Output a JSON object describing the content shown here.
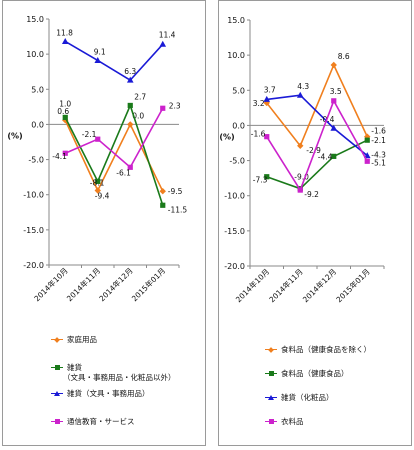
{
  "chart_data": [
    {
      "type": "line",
      "ylabel": "(%)",
      "ylim": [
        -20,
        15
      ],
      "yticks": [
        "15.0",
        "10.0",
        "5.0",
        "0.0",
        "-5.0",
        "-10.0",
        "-15.0",
        "-20.0"
      ],
      "ytick_values": [
        15,
        10,
        5,
        0,
        -5,
        -10,
        -15,
        -20
      ],
      "categories": [
        "2014年10月",
        "2014年11月",
        "2014年12月",
        "2015年01月"
      ],
      "legend_position": "bottom",
      "series": [
        {
          "name": "家庭用品",
          "name_lines": [
            "家庭用品"
          ],
          "color": "#f07f1e",
          "marker": "diamond",
          "values": [
            0.6,
            -9.4,
            0.0,
            -9.5
          ],
          "labels": [
            "0.6",
            "-9.4",
            "0.0",
            "-9.5"
          ]
        },
        {
          "name": "雑貨（文具・事務用品・化粧品以外）",
          "name_lines": [
            "雑貨",
            "（文具・事務用品・化粧品以外）"
          ],
          "color": "#1a7a1a",
          "marker": "square",
          "values": [
            1.0,
            -8.1,
            2.7,
            -11.5
          ],
          "labels": [
            "1.0",
            "-8.1",
            "2.7",
            "-11.5"
          ]
        },
        {
          "name": "雑貨（文具・事務用品）",
          "name_lines": [
            "雑貨（文具・事務用品）"
          ],
          "color": "#1a1ad6",
          "marker": "triangle",
          "values": [
            11.8,
            9.1,
            6.3,
            11.4
          ],
          "labels": [
            "11.8",
            "9.1",
            "6.3",
            "11.4"
          ]
        },
        {
          "name": "通信教育・サービス",
          "name_lines": [
            "通信教育・サービス"
          ],
          "color": "#cc22cc",
          "marker": "square",
          "values": [
            -4.1,
            -2.1,
            -6.1,
            2.3
          ],
          "labels": [
            "-4.1",
            "-2.1",
            "-6.1",
            "2.3"
          ]
        }
      ]
    },
    {
      "type": "line",
      "ylabel": "(%)",
      "ylim": [
        -20,
        15
      ],
      "yticks": [
        "15.0",
        "10.0",
        "5.0",
        "0.0",
        "-5.0",
        "-10.0",
        "-15.0",
        "-20.0"
      ],
      "ytick_values": [
        15,
        10,
        5,
        0,
        -5,
        -10,
        -15,
        -20
      ],
      "categories": [
        "2014年10月",
        "2014年11月",
        "2014年12月",
        "2015年01月"
      ],
      "legend_position": "bottom",
      "series": [
        {
          "name": "食料品（健康食品を除く）",
          "name_lines": [
            "食料品（健康食品を除く）"
          ],
          "color": "#f07f1e",
          "marker": "diamond",
          "values": [
            3.2,
            -2.9,
            8.6,
            -1.6
          ],
          "labels": [
            "3.2",
            "-2.9",
            "8.6",
            "-1.6"
          ]
        },
        {
          "name": "食料品（健康食品）",
          "name_lines": [
            "食料品（健康食品）"
          ],
          "color": "#1a7a1a",
          "marker": "square",
          "values": [
            -7.3,
            -9.0,
            -4.4,
            -2.1
          ],
          "labels": [
            "-7.3",
            "-9.0",
            "-4.4",
            "-2.1"
          ]
        },
        {
          "name": "雑貨（化粧品）",
          "name_lines": [
            "雑貨（化粧品）"
          ],
          "color": "#1a1ad6",
          "marker": "triangle",
          "values": [
            3.7,
            4.3,
            -0.4,
            -4.3
          ],
          "labels": [
            "3.7",
            "4.3",
            "-0.4",
            "-4.3"
          ]
        },
        {
          "name": "衣料品",
          "name_lines": [
            "衣料品"
          ],
          "color": "#cc22cc",
          "marker": "square",
          "values": [
            -1.6,
            -9.2,
            3.5,
            -5.1
          ],
          "labels": [
            "-1.6",
            "-9.2",
            "3.5",
            "-5.1"
          ]
        }
      ]
    }
  ]
}
